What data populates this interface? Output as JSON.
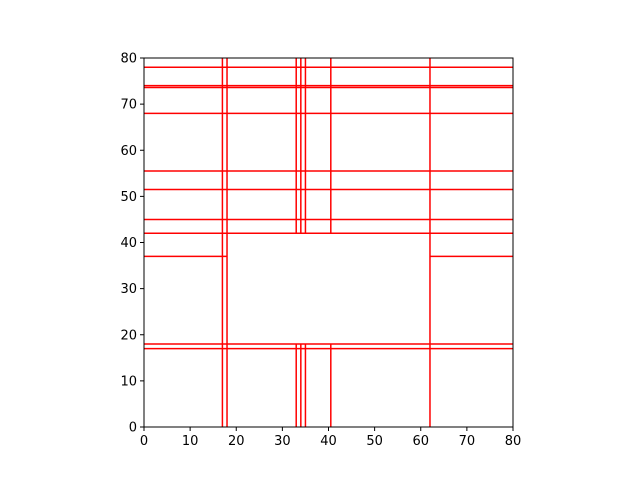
{
  "chart_data": {
    "type": "line",
    "title": "",
    "xlabel": "",
    "ylabel": "",
    "xlim": [
      0,
      80
    ],
    "ylim": [
      0,
      80
    ],
    "xticks": [
      "0",
      "10",
      "20",
      "30",
      "40",
      "50",
      "60",
      "70",
      "80"
    ],
    "yticks": [
      "0",
      "10",
      "20",
      "30",
      "40",
      "50",
      "60",
      "70",
      "80"
    ],
    "grid": false,
    "aspect": "equal",
    "line_color": "#ff0000",
    "axis_color": "#000000",
    "segments": [
      {
        "x": [
          17,
          17
        ],
        "y": [
          0,
          80
        ]
      },
      {
        "x": [
          18,
          18
        ],
        "y": [
          0,
          80
        ]
      },
      {
        "x": [
          62,
          62
        ],
        "y": [
          0,
          80
        ]
      },
      {
        "x": [
          33,
          33
        ],
        "y": [
          0,
          18
        ]
      },
      {
        "x": [
          34,
          34
        ],
        "y": [
          0,
          18
        ]
      },
      {
        "x": [
          35,
          35
        ],
        "y": [
          0,
          18
        ]
      },
      {
        "x": [
          40.5,
          40.5
        ],
        "y": [
          0,
          18
        ]
      },
      {
        "x": [
          33,
          33
        ],
        "y": [
          42,
          80
        ]
      },
      {
        "x": [
          34,
          34
        ],
        "y": [
          42,
          80
        ]
      },
      {
        "x": [
          35,
          35
        ],
        "y": [
          42,
          80
        ]
      },
      {
        "x": [
          40.5,
          40.5
        ],
        "y": [
          42,
          80
        ]
      },
      {
        "x": [
          0,
          80
        ],
        "y": [
          17,
          17
        ]
      },
      {
        "x": [
          0,
          80
        ],
        "y": [
          18,
          18
        ]
      },
      {
        "x": [
          0,
          80
        ],
        "y": [
          42,
          42
        ]
      },
      {
        "x": [
          0,
          80
        ],
        "y": [
          45,
          45
        ]
      },
      {
        "x": [
          0,
          80
        ],
        "y": [
          51.5,
          51.5
        ]
      },
      {
        "x": [
          0,
          80
        ],
        "y": [
          55.5,
          55.5
        ]
      },
      {
        "x": [
          0,
          80
        ],
        "y": [
          68,
          68
        ]
      },
      {
        "x": [
          0,
          80
        ],
        "y": [
          73.6,
          73.6
        ]
      },
      {
        "x": [
          0,
          80
        ],
        "y": [
          74,
          74
        ]
      },
      {
        "x": [
          0,
          80
        ],
        "y": [
          78,
          78
        ]
      },
      {
        "x": [
          0,
          18
        ],
        "y": [
          37,
          37
        ]
      },
      {
        "x": [
          62,
          80
        ],
        "y": [
          37,
          37
        ]
      }
    ]
  }
}
